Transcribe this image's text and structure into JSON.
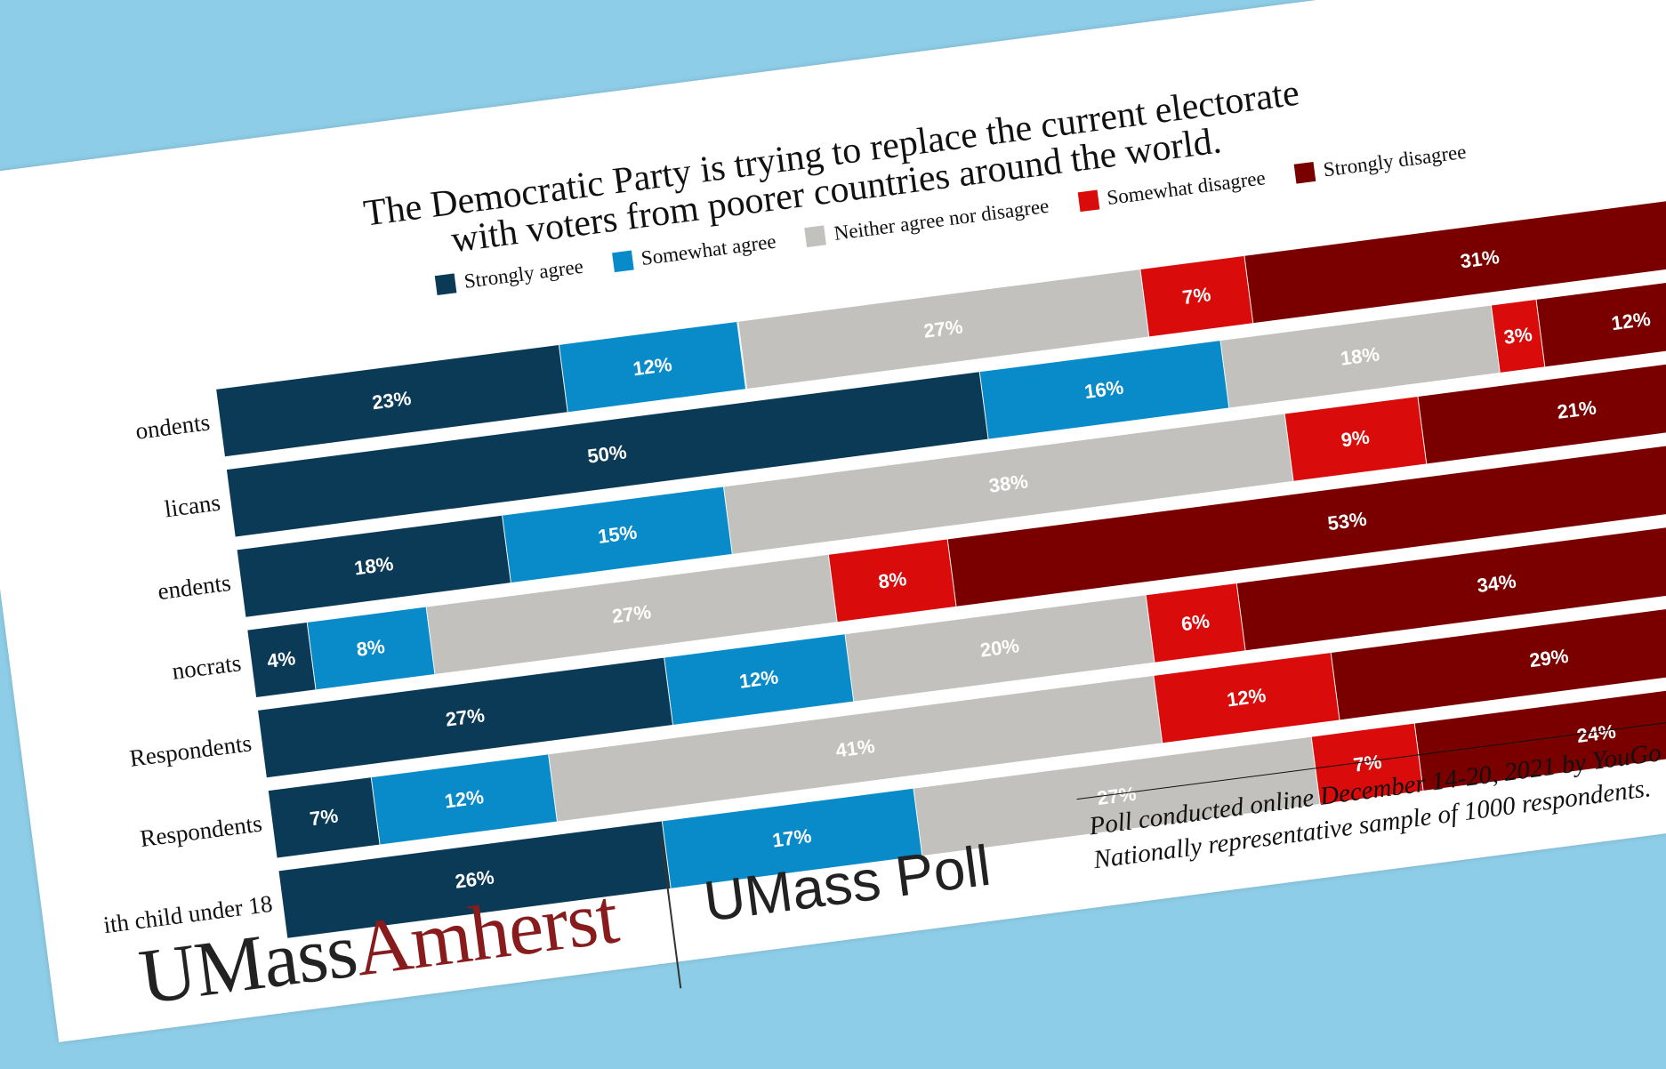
{
  "chart_data": {
    "type": "bar",
    "orientation": "horizontal-stacked-100",
    "title": "The Democratic Party is trying to replace the current electorate with voters from poorer countries around the world.",
    "title_lines": [
      "The Democratic Party is trying to replace the current electorate",
      "with voters from poorer countries around the world."
    ],
    "categories": [
      "ondents",
      "licans",
      "endents",
      "nocrats",
      "Respondents",
      "Respondents",
      "ith child under 18"
    ],
    "series": [
      {
        "name": "Strongly agree",
        "color": "#0b3a57",
        "values": [
          23,
          50,
          18,
          4,
          27,
          7,
          26
        ]
      },
      {
        "name": "Somewhat agree",
        "color": "#0a8bc9",
        "values": [
          12,
          16,
          15,
          8,
          12,
          12,
          17
        ]
      },
      {
        "name": "Neither agree nor disagree",
        "color": "#c2c1bd",
        "values": [
          27,
          18,
          38,
          27,
          20,
          41,
          27
        ]
      },
      {
        "name": "Somewhat disagree",
        "color": "#d90b0b",
        "values": [
          7,
          3,
          9,
          8,
          6,
          12,
          7
        ]
      },
      {
        "name": "Strongly disagree",
        "color": "#7a0000",
        "values": [
          31,
          12,
          21,
          53,
          34,
          29,
          24
        ]
      }
    ],
    "xlim": [
      0,
      100
    ],
    "grid": false,
    "legend_position": "top"
  },
  "legend": [
    {
      "label": "Strongly agree",
      "color": "#0b3a57"
    },
    {
      "label": "Somewhat agree",
      "color": "#0a8bc9"
    },
    {
      "label": "Neither agree nor disagree",
      "color": "#c2c1bd"
    },
    {
      "label": "Somewhat disagree",
      "color": "#d90b0b"
    },
    {
      "label": "Strongly disagree",
      "color": "#7a0000"
    }
  ],
  "footnote": {
    "line1": "Poll conducted online December 14-20, 2021 by YouGo",
    "line2": "Nationally representative sample of 1000 respondents."
  },
  "branding": {
    "logo_part1": "UMass",
    "logo_part2": "Amherst",
    "poll": "UMass Poll"
  },
  "colors": {
    "background": "#8ecde7",
    "sheet": "#ffffff",
    "brand_maroon": "#881c1c"
  }
}
